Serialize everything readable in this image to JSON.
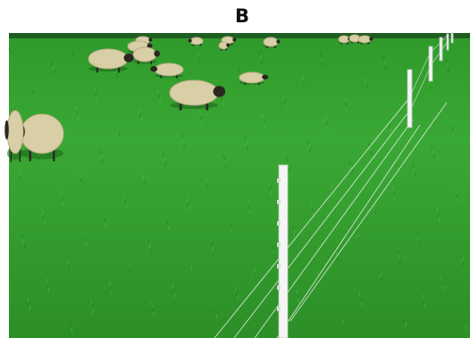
{
  "header": {
    "title": "B"
  }
}
